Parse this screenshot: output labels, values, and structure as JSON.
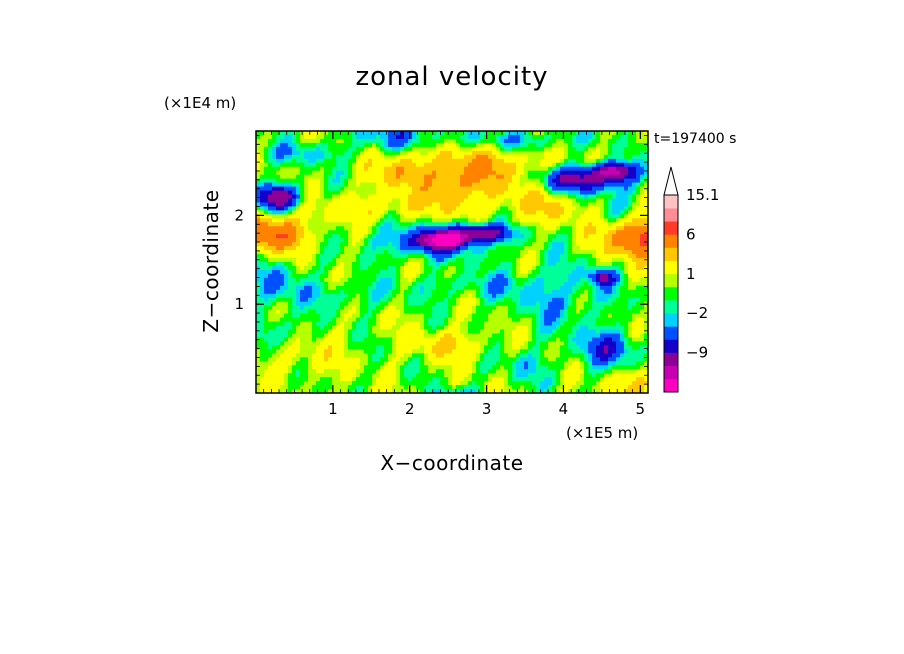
{
  "chart_data": {
    "type": "heatmap",
    "title": "zonal velocity",
    "xlabel": "X−coordinate",
    "ylabel": "Z−coordinate",
    "x_scale_note": "(×1E5 m)",
    "y_scale_note": "(×1E4 m)",
    "time_label": "t=197400 s",
    "xlim": [
      0,
      5.1
    ],
    "ylim": [
      0,
      2.95
    ],
    "x_ticks": [
      {
        "value": 1,
        "label": "1"
      },
      {
        "value": 2,
        "label": "2"
      },
      {
        "value": 3,
        "label": "3"
      },
      {
        "value": 4,
        "label": "4"
      },
      {
        "value": 5,
        "label": "5"
      }
    ],
    "y_ticks": [
      {
        "value": 1,
        "label": "1"
      },
      {
        "value": 2,
        "label": "2"
      }
    ],
    "colorbar": {
      "levels": [
        -15,
        -12,
        -9,
        -6,
        -4,
        -2,
        -1,
        0,
        1,
        2,
        4,
        6,
        9,
        12,
        15.1
      ],
      "colors": [
        "#ff00c0",
        "#c800b4",
        "#8c0096",
        "#1400c8",
        "#0050ff",
        "#00d2ff",
        "#00ff96",
        "#00ff00",
        "#b4ff00",
        "#ffff00",
        "#ffc800",
        "#ff8200",
        "#ff3c28",
        "#ff8c96",
        "#ffc3c3"
      ],
      "extend_color": "#ffffff",
      "labels": [
        {
          "value": 15.1,
          "label": "15.1"
        },
        {
          "value": 6,
          "label": "6"
        },
        {
          "value": 1,
          "label": "1"
        },
        {
          "value": -2,
          "label": "−2"
        },
        {
          "value": -9,
          "label": "−9"
        }
      ]
    },
    "field": {
      "background": 1.2,
      "features": [
        {
          "x": 0.2,
          "z": 1.8,
          "sx": 0.45,
          "sz": 0.2,
          "a": 8
        },
        {
          "x": 5.0,
          "z": 1.75,
          "sx": 0.45,
          "sz": 0.22,
          "a": 9
        },
        {
          "x": 2.3,
          "z": 1.7,
          "sx": 0.7,
          "sz": 0.18,
          "a": -6
        },
        {
          "x": 2.45,
          "z": 1.72,
          "sx": 0.25,
          "sz": 0.07,
          "a": -12
        },
        {
          "x": 2.9,
          "z": 1.8,
          "sx": 0.4,
          "sz": 0.1,
          "a": -9
        },
        {
          "x": 0.3,
          "z": 2.2,
          "sx": 0.3,
          "sz": 0.15,
          "a": -9
        },
        {
          "x": 4.2,
          "z": 2.4,
          "sx": 0.6,
          "sz": 0.15,
          "a": -8
        },
        {
          "x": 4.65,
          "z": 2.5,
          "sx": 0.25,
          "sz": 0.1,
          "a": -10
        },
        {
          "x": 3.0,
          "z": 2.5,
          "sx": 0.8,
          "sz": 0.3,
          "a": 4.5
        },
        {
          "x": 1.9,
          "z": 2.5,
          "sx": 0.35,
          "sz": 0.2,
          "a": 4
        },
        {
          "x": 2.55,
          "z": 2.3,
          "sx": 0.3,
          "sz": 0.3,
          "a": 3
        },
        {
          "x": 1.85,
          "z": 2.9,
          "sx": 0.6,
          "sz": 0.15,
          "a": -3.5
        },
        {
          "x": 3.4,
          "z": 2.85,
          "sx": 0.9,
          "sz": 0.12,
          "a": -3
        },
        {
          "x": 0.6,
          "z": 2.7,
          "sx": 0.6,
          "sz": 0.12,
          "a": -2.5
        },
        {
          "x": 0.3,
          "z": 1.25,
          "sx": 0.4,
          "sz": 0.25,
          "a": -3
        },
        {
          "x": 0.3,
          "z": 0.7,
          "sx": 0.3,
          "sz": 0.2,
          "a": -2.5
        },
        {
          "x": 1.2,
          "z": 1.1,
          "sx": 0.6,
          "sz": 0.15,
          "a": -2
        },
        {
          "x": 2.8,
          "z": 1.2,
          "sx": 0.8,
          "sz": 0.15,
          "a": -2
        },
        {
          "x": 4.0,
          "z": 1.1,
          "sx": 0.7,
          "sz": 0.4,
          "a": -2.5
        },
        {
          "x": 4.6,
          "z": 0.5,
          "sx": 0.4,
          "sz": 0.2,
          "a": -5
        },
        {
          "x": 4.5,
          "z": 1.3,
          "sx": 0.15,
          "sz": 0.08,
          "a": -7
        },
        {
          "x": 2.5,
          "z": 0.55,
          "sx": 0.5,
          "sz": 0.15,
          "a": 3
        },
        {
          "x": 0.6,
          "z": 0.4,
          "sx": 0.5,
          "sz": 0.2,
          "a": 1.8
        },
        {
          "x": 3.5,
          "z": 0.3,
          "sx": 0.4,
          "sz": 0.2,
          "a": -1.8
        },
        {
          "x": 5.0,
          "z": 0.1,
          "sx": 0.3,
          "sz": 0.2,
          "a": 3.5
        },
        {
          "x": 2.6,
          "z": 0.0,
          "sx": 0.3,
          "sz": 0.08,
          "a": -2.5
        },
        {
          "x": 1.6,
          "z": 2.1,
          "sx": 0.8,
          "sz": 0.15,
          "a": 2.5
        },
        {
          "x": 3.8,
          "z": 2.1,
          "sx": 0.6,
          "sz": 0.2,
          "a": 2.5
        },
        {
          "x": 4.7,
          "z": 2.1,
          "sx": 0.3,
          "sz": 0.2,
          "a": -2
        }
      ]
    }
  }
}
